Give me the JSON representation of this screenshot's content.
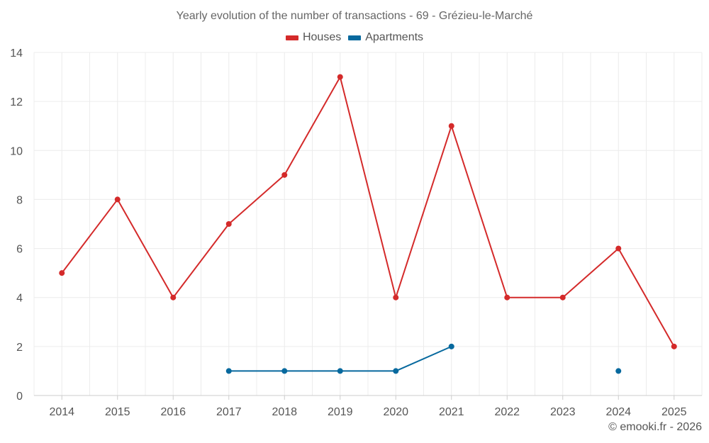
{
  "colors": {
    "houses": "#d42a2a",
    "apartments": "#07699e",
    "grid": "#ececec",
    "axis": "#cccccc",
    "tick_text": "#555555"
  },
  "credit": "© emooki.fr - 2026",
  "chart_data": {
    "type": "line",
    "title": "Yearly evolution of the number of transactions - 69 - Grézieu-le-Marché",
    "xlabel": "",
    "ylabel": "",
    "categories": [
      "2014",
      "2015",
      "2016",
      "2017",
      "2018",
      "2019",
      "2020",
      "2021",
      "2022",
      "2023",
      "2024",
      "2025"
    ],
    "ylim": [
      0,
      14
    ],
    "yticks": [
      0,
      2,
      4,
      6,
      8,
      10,
      12,
      14
    ],
    "grid": true,
    "legend_position": "top-center",
    "series": [
      {
        "name": "Houses",
        "color": "#d42a2a",
        "values": [
          5,
          8,
          4,
          7,
          9,
          13,
          4,
          11,
          4,
          4,
          6,
          2
        ]
      },
      {
        "name": "Apartments",
        "color": "#07699e",
        "values": [
          null,
          null,
          null,
          1,
          1,
          1,
          1,
          2,
          null,
          null,
          1,
          null
        ]
      }
    ]
  }
}
